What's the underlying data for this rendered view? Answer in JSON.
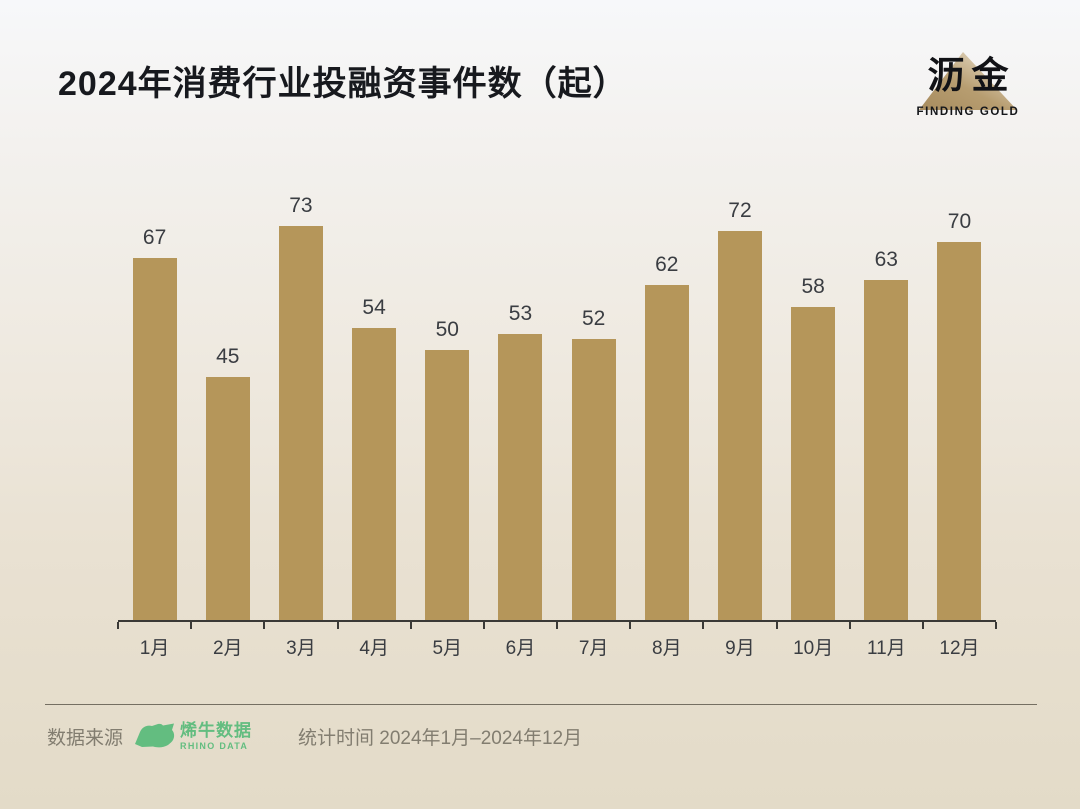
{
  "header": {
    "title": "2024年消费行业投融资事件数（起）",
    "brand_name": "沥金",
    "brand_tagline": "FINDING GOLD"
  },
  "chart_data": {
    "type": "bar",
    "title": "2024年消费行业投融资事件数（起）",
    "categories": [
      "1月",
      "2月",
      "3月",
      "4月",
      "5月",
      "6月",
      "7月",
      "8月",
      "9月",
      "10月",
      "11月",
      "12月"
    ],
    "values": [
      67,
      45,
      73,
      54,
      50,
      53,
      52,
      62,
      72,
      58,
      63,
      70
    ],
    "xlabel": "",
    "ylabel": "",
    "ylim": [
      0,
      80
    ],
    "grid": false,
    "legend": "none",
    "value_labels": true,
    "bar_color": "#b5965a"
  },
  "footer": {
    "source_label": "数据来源",
    "source_name": "烯牛数据",
    "source_subname": "RHINO DATA",
    "period_text": "统计时间 2024年1月–2024年12月"
  },
  "colors": {
    "bar": "#b5965a",
    "title_text": "#17191e",
    "label_text": "#3a3d42",
    "axis": "#3a3936",
    "footer_text": "#827d70",
    "source_green": "#63bd80",
    "bg_top": "#f7f8fa",
    "bg_bottom": "#e3dbc8",
    "triangle_dark": "#a78c5f",
    "triangle_light": "#e2d7c2"
  }
}
